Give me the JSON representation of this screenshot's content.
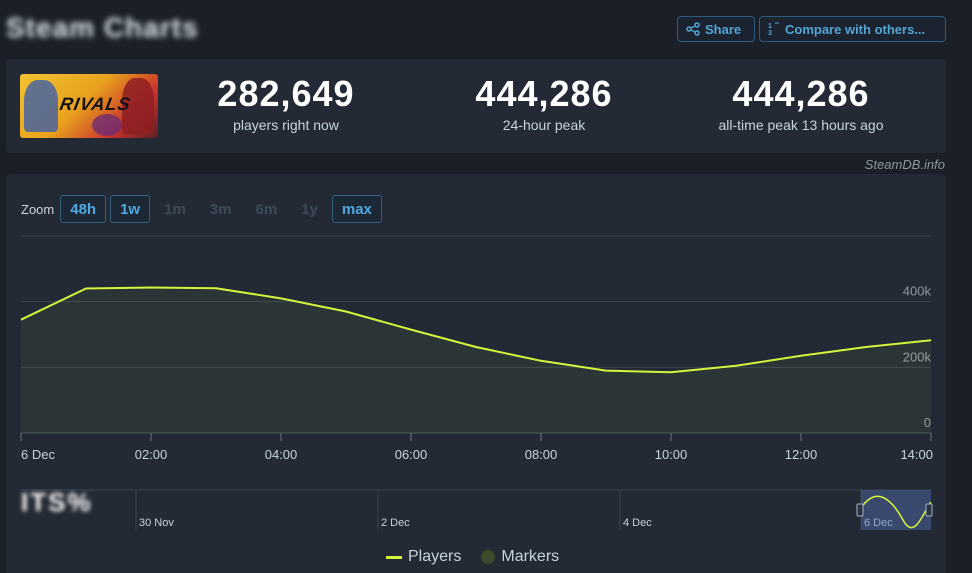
{
  "header": {
    "title": "Steam Charts",
    "share_label": "Share",
    "compare_label": "Compare with others..."
  },
  "game": {
    "logo_text": "RIVALS"
  },
  "stats": [
    {
      "value": "282,649",
      "label": "players right now"
    },
    {
      "value": "444,286",
      "label": "24-hour peak"
    },
    {
      "value": "444,286",
      "label": "all-time peak 13 hours ago"
    }
  ],
  "watermark": "SteamDB.info",
  "zoom": {
    "label": "Zoom",
    "options": [
      {
        "label": "48h",
        "active": true
      },
      {
        "label": "1w",
        "active": true
      },
      {
        "label": "1m",
        "active": false
      },
      {
        "label": "3m",
        "active": false
      },
      {
        "label": "6m",
        "active": false
      },
      {
        "label": "1y",
        "active": false
      },
      {
        "label": "max",
        "active": true
      }
    ]
  },
  "legend": {
    "players": "Players",
    "markers": "Markers"
  },
  "colors": {
    "line": "#d2f53c",
    "accent": "#54a5d4",
    "background": "#1b2028",
    "card": "#232a35"
  },
  "chart_data": {
    "type": "line",
    "series": [
      {
        "name": "Players",
        "x": [
          "00:00",
          "01:00",
          "02:00",
          "03:00",
          "04:00",
          "05:00",
          "06:00",
          "07:00",
          "08:00",
          "09:00",
          "10:00",
          "11:00",
          "12:00",
          "13:00",
          "14:00"
        ],
        "values": [
          345000,
          440000,
          443000,
          441000,
          410000,
          370000,
          315000,
          262000,
          220000,
          190000,
          185000,
          205000,
          235000,
          262000,
          282649
        ]
      }
    ],
    "x_tick_labels": [
      "6 Dec",
      "02:00",
      "04:00",
      "06:00",
      "08:00",
      "10:00",
      "12:00",
      "14:00"
    ],
    "y_tick_labels": [
      "0",
      "200k",
      "400k"
    ],
    "ylim": [
      0,
      600000
    ],
    "navigator_labels": [
      "30 Nov",
      "2 Dec",
      "4 Dec",
      "6 Dec"
    ],
    "grid": true
  }
}
